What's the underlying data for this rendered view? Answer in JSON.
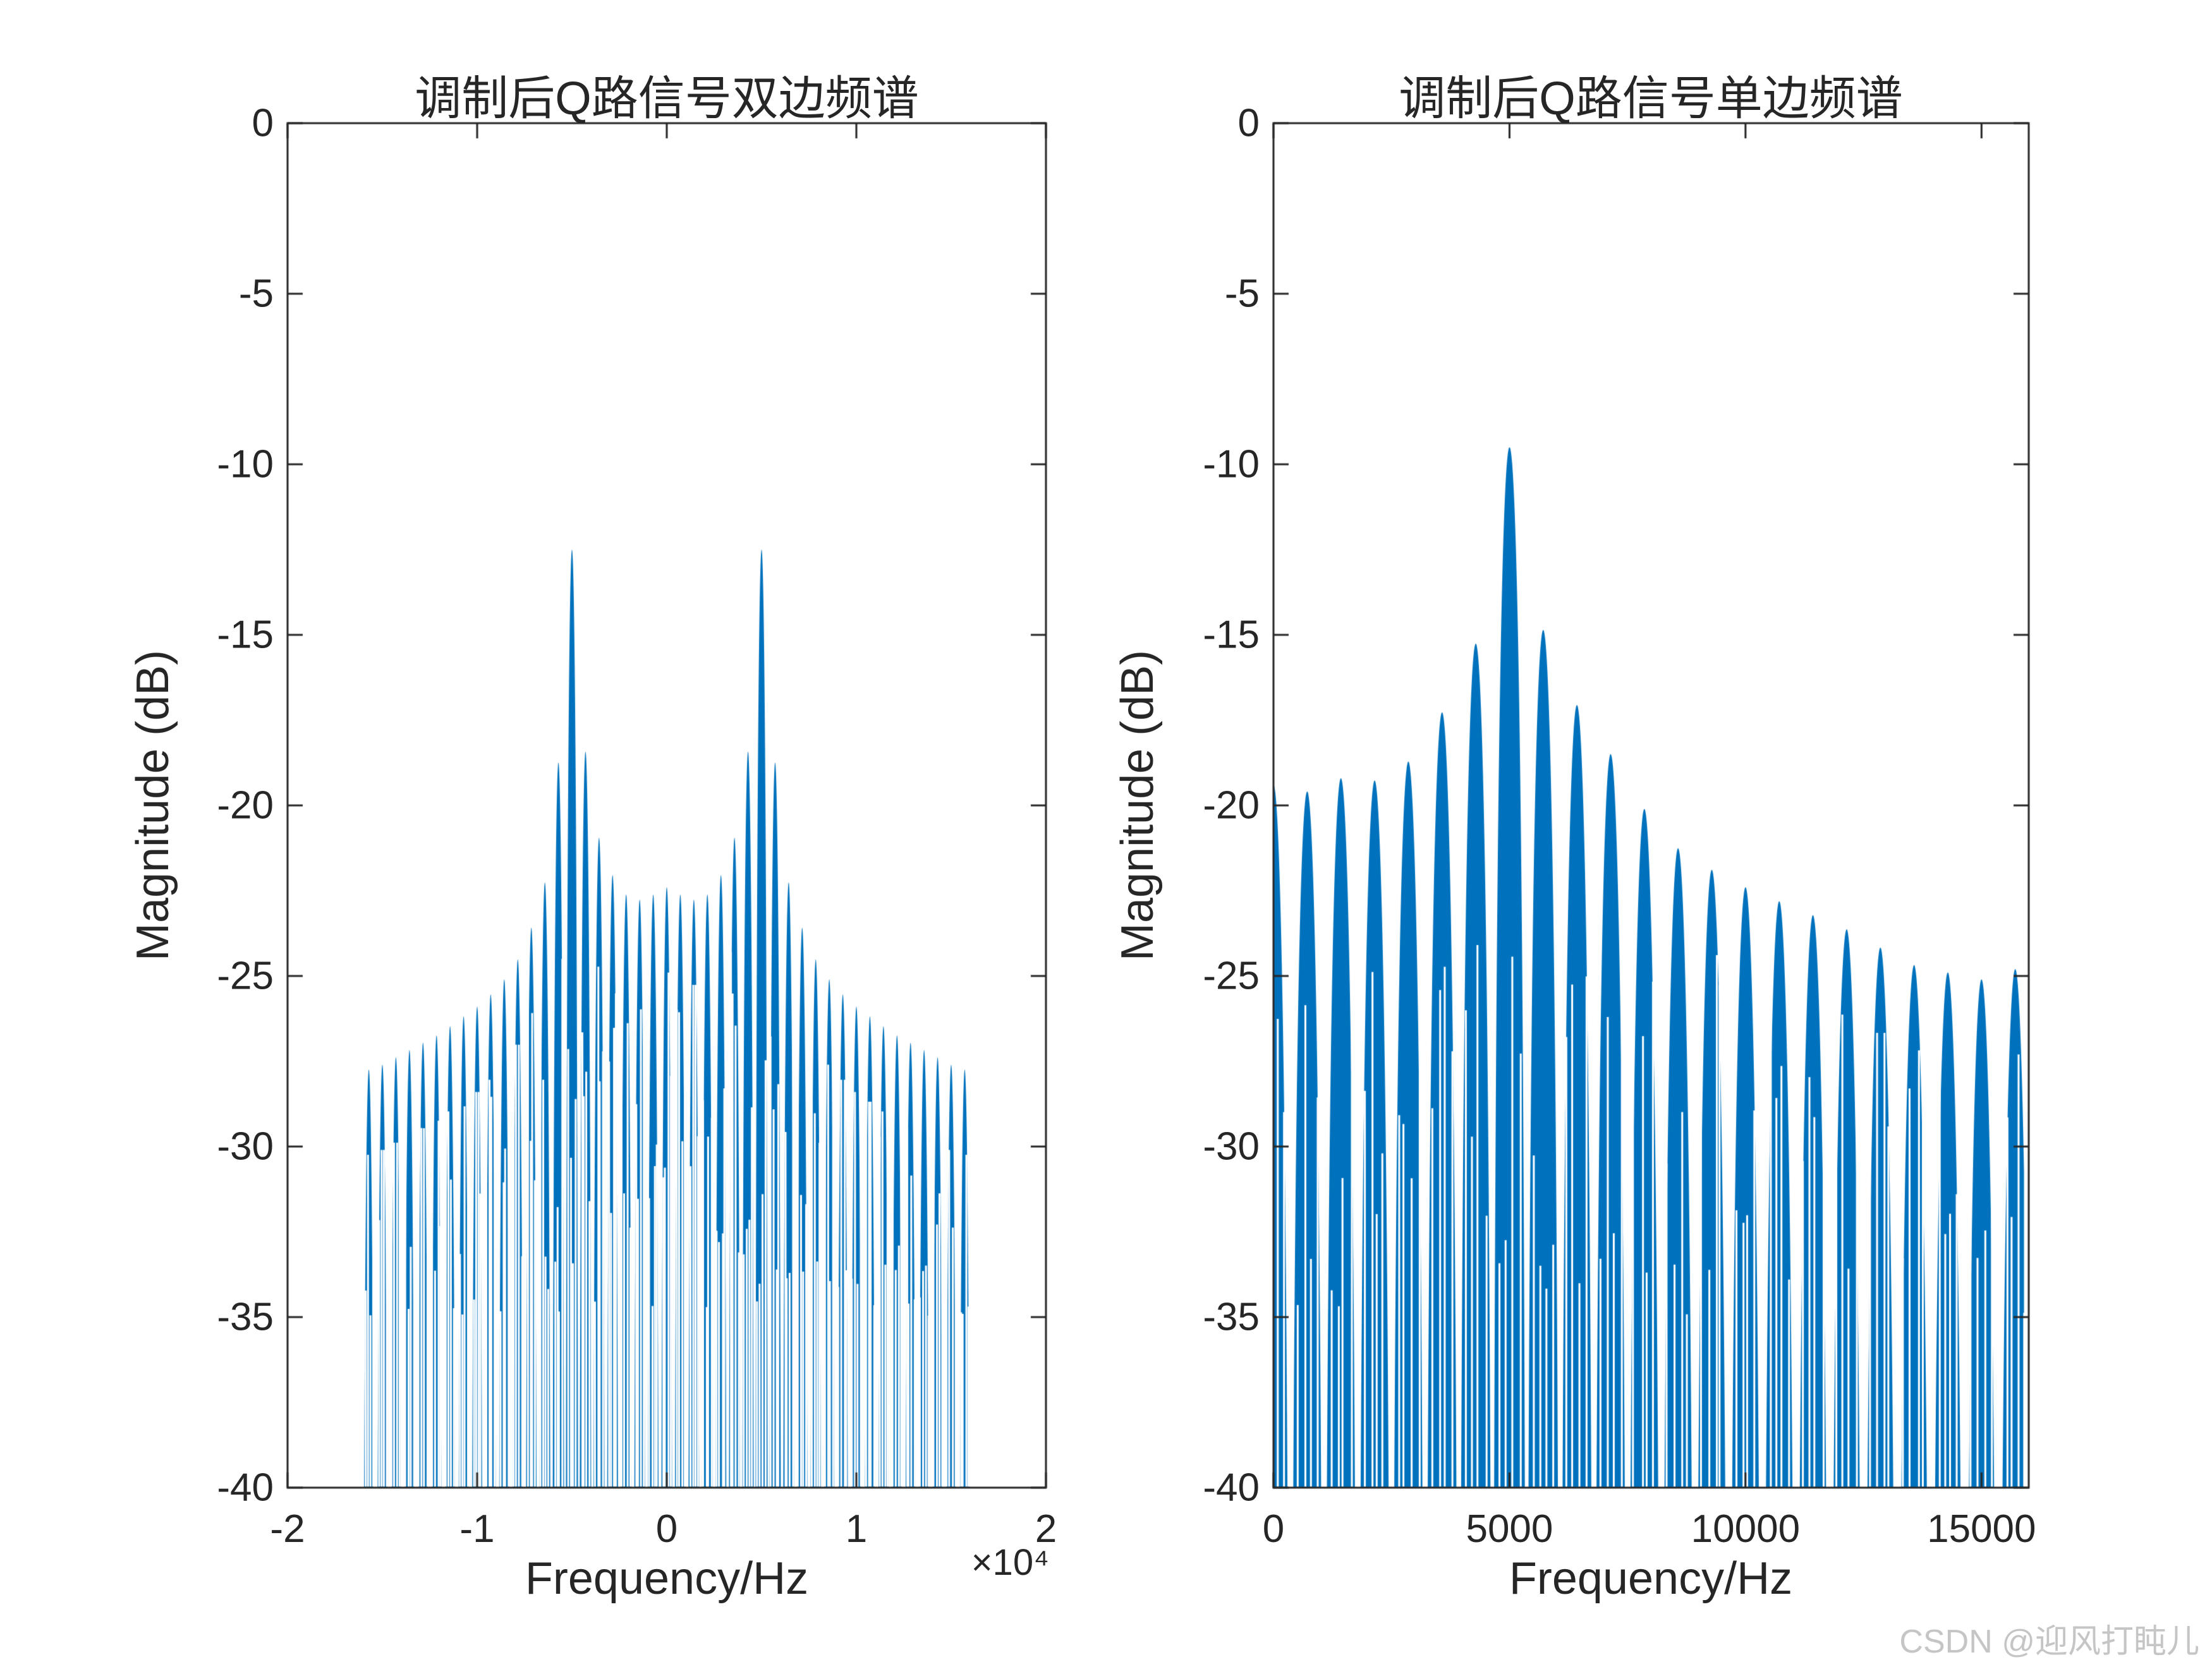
{
  "page": {
    "background": "#ffffff",
    "watermark": "CSDN @迎风打盹儿"
  },
  "chart_data": [
    {
      "type": "line",
      "title": "调制后Q路信号双边频谱",
      "xlabel": "Frequency/Hz",
      "ylabel": "Magnitude (dB)",
      "x_multiplier": "×10⁴",
      "xlim": [
        -20000,
        20000
      ],
      "ylim": [
        -40,
        0
      ],
      "xticks": [
        -20000,
        -10000,
        0,
        10000,
        20000
      ],
      "xtick_labels": [
        "-2",
        "-1",
        "0",
        "1",
        "2"
      ],
      "yticks": [
        0,
        -5,
        -10,
        -15,
        -20,
        -25,
        -30,
        -35,
        -40
      ],
      "ytick_labels": [
        "0",
        "-5",
        "-10",
        "-15",
        "-20",
        "-25",
        "-30",
        "-35",
        "-40"
      ],
      "grid": false,
      "legend": null,
      "line_color": "#0072BD",
      "lobe_spacing_hz": 714.2857,
      "lobe_sharpness": 1.8,
      "freq_range": [
        -16000,
        16000
      ],
      "peaks": [
        {
          "freq": -5000,
          "db": -12.5
        },
        {
          "freq": 5000,
          "db": -12.5
        }
      ],
      "envelope_db": [
        [
          -16000,
          -27.8
        ],
        [
          -15000,
          -27.6
        ],
        [
          -14000,
          -27.3
        ],
        [
          -13000,
          -27.0
        ],
        [
          -12000,
          -26.7
        ],
        [
          -11000,
          -26.3
        ],
        [
          -10000,
          -25.9
        ],
        [
          -9000,
          -25.4
        ],
        [
          -8000,
          -24.7
        ],
        [
          -7000,
          -23.4
        ],
        [
          -6400,
          -22.2
        ],
        [
          -6000,
          -20.6
        ],
        [
          -5600,
          -18.0
        ],
        [
          -5000,
          -12.5
        ],
        [
          -4500,
          -17.3
        ],
        [
          -4100,
          -19.4
        ],
        [
          -3600,
          -20.9
        ],
        [
          -3000,
          -21.9
        ],
        [
          -2400,
          -22.5
        ],
        [
          -1700,
          -22.8
        ],
        [
          -1000,
          -22.7
        ],
        [
          0,
          -22.4
        ],
        [
          1000,
          -22.7
        ],
        [
          1700,
          -22.8
        ],
        [
          2400,
          -22.5
        ],
        [
          3000,
          -21.9
        ],
        [
          3600,
          -20.9
        ],
        [
          4100,
          -19.4
        ],
        [
          4500,
          -17.3
        ],
        [
          5000,
          -12.5
        ],
        [
          5600,
          -18.0
        ],
        [
          6000,
          -20.6
        ],
        [
          6400,
          -22.2
        ],
        [
          7000,
          -23.4
        ],
        [
          8000,
          -24.7
        ],
        [
          9000,
          -25.4
        ],
        [
          10000,
          -25.9
        ],
        [
          11000,
          -26.3
        ],
        [
          12000,
          -26.7
        ],
        [
          13000,
          -27.0
        ],
        [
          14000,
          -27.3
        ],
        [
          15000,
          -27.6
        ],
        [
          16000,
          -27.8
        ]
      ]
    },
    {
      "type": "line",
      "title": "调制后Q路信号单边频谱",
      "xlabel": "Frequency/Hz",
      "ylabel": "Magnitude (dB)",
      "x_multiplier": null,
      "xlim": [
        0,
        16000
      ],
      "ylim": [
        -40,
        0
      ],
      "xticks": [
        0,
        5000,
        10000,
        15000
      ],
      "xtick_labels": [
        "0",
        "5000",
        "10000",
        "15000"
      ],
      "yticks": [
        0,
        -5,
        -10,
        -15,
        -20,
        -25,
        -30,
        -35,
        -40
      ],
      "ytick_labels": [
        "0",
        "-5",
        "-10",
        "-15",
        "-20",
        "-25",
        "-30",
        "-35",
        "-40"
      ],
      "grid": false,
      "legend": null,
      "line_color": "#0072BD",
      "lobe_spacing_hz": 714.2857,
      "lobe_sharpness": 1.8,
      "freq_range": [
        0,
        15900
      ],
      "peaks": [
        {
          "freq": 5000,
          "db": -9.5
        }
      ],
      "envelope_db": [
        [
          0,
          -19.4
        ],
        [
          700,
          -19.6
        ],
        [
          1400,
          -19.2
        ],
        [
          2100,
          -19.3
        ],
        [
          2800,
          -18.8
        ],
        [
          3200,
          -18.2
        ],
        [
          3600,
          -17.2
        ],
        [
          4000,
          -16.4
        ],
        [
          4300,
          -15.2
        ],
        [
          4600,
          -13.2
        ],
        [
          5000,
          -9.5
        ],
        [
          5400,
          -12.6
        ],
        [
          5700,
          -14.8
        ],
        [
          6100,
          -16.4
        ],
        [
          6400,
          -17.0
        ],
        [
          7100,
          -18.4
        ],
        [
          7900,
          -20.2
        ],
        [
          8600,
          -21.3
        ],
        [
          9300,
          -21.9
        ],
        [
          10000,
          -22.4
        ],
        [
          10700,
          -22.8
        ],
        [
          11400,
          -23.2
        ],
        [
          12100,
          -23.6
        ],
        [
          12900,
          -24.2
        ],
        [
          13600,
          -24.7
        ],
        [
          14300,
          -24.9
        ],
        [
          15000,
          -25.1
        ],
        [
          15700,
          -24.8
        ],
        [
          16000,
          -24.8
        ]
      ]
    }
  ]
}
